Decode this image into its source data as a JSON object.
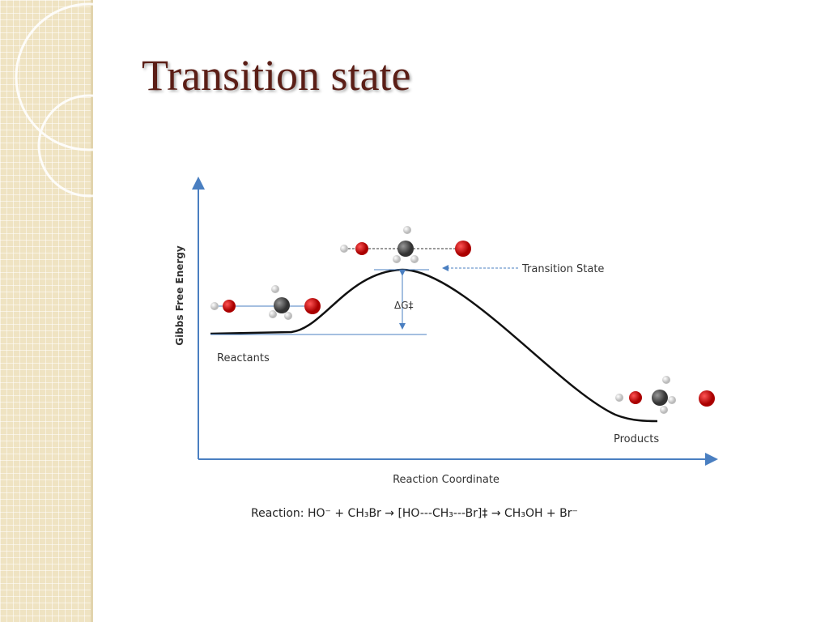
{
  "slide": {
    "title": "Transition state"
  },
  "diagram": {
    "y_axis_label": "Gibbs Free Energy",
    "x_axis_label": "Reaction Coordinate",
    "transition_state_label": "Transition State",
    "reactants_label": "Reactants",
    "products_label": "Products",
    "delta_g_label": "ΔG‡",
    "reaction": "Reaction:  HO⁻ + CH₃Br → [HO---CH₃---Br]‡ → CH₃OH + Br⁻"
  }
}
